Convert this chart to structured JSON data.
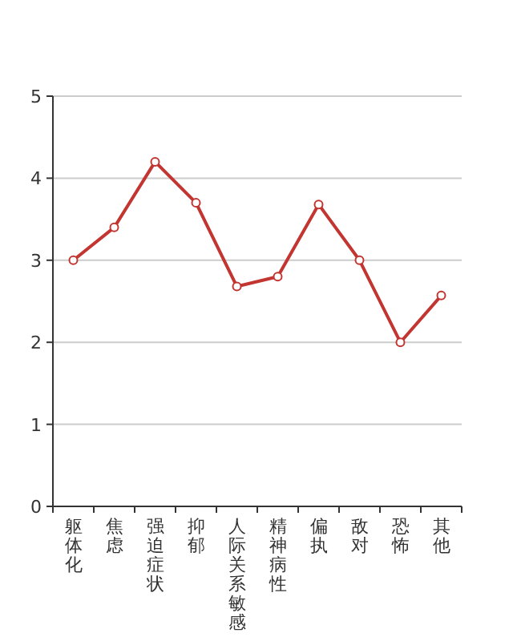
{
  "chart_data": {
    "type": "line",
    "categories": [
      "躯体化",
      "焦虑",
      "强迫症状",
      "抑郁",
      "人际关系敏感",
      "精神病性",
      "偏执",
      "敌对",
      "恐怖",
      "其他"
    ],
    "series": [
      {
        "color": "#c23531",
        "values": [
          3.0,
          3.4,
          4.2,
          3.7,
          2.68,
          2.8,
          3.68,
          3.0,
          2.0,
          2.57
        ]
      }
    ],
    "ylim": [
      0,
      5
    ],
    "yticks": [
      0,
      1,
      2,
      3,
      4,
      5
    ],
    "grid": "y",
    "marker": "circle",
    "line_style": "solid"
  }
}
